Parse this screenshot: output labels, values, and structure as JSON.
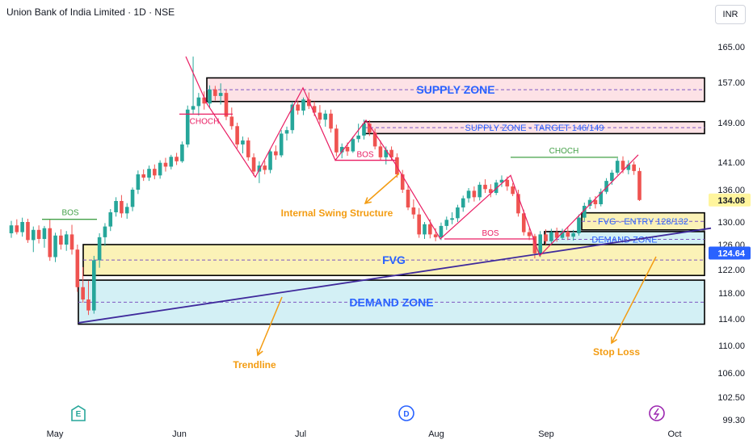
{
  "header": {
    "title": "Union Bank of India Limited · 1D · NSE",
    "currency": "INR"
  },
  "colors": {
    "up": "#26a69a",
    "down": "#ef5350",
    "supply_fill": "#fde2e6",
    "fvg_fill": "#fbf2b7",
    "demand_fill": "#d3f0f5",
    "zone_text": "#2962ff",
    "annotation": "#f39c12",
    "trendline": "#3f2a9c",
    "structure": "#e91e63",
    "choch_green": "#43a047",
    "last_price_bg": "#fff59d",
    "bid_price_bg": "#2962ff"
  },
  "chart_data": {
    "type": "candlestick",
    "title": "Union Bank of India Limited · 1D · NSE",
    "ylim": [
      99.3,
      168
    ],
    "y_ticks": [
      "165.00",
      "157.00",
      "149.00",
      "141.00",
      "136.00",
      "130.00",
      "126.00",
      "122.00",
      "118.00",
      "114.00",
      "110.00",
      "106.00",
      "102.50",
      "99.30"
    ],
    "x_ticks": [
      "May",
      "Jun",
      "Jul",
      "Aug",
      "Sep",
      "Oct"
    ],
    "price_labels": {
      "last": "134.08",
      "line": "124.64"
    },
    "candles": [
      [
        128.0,
        130.2,
        127.2,
        129.4
      ],
      [
        129.4,
        130.5,
        127.8,
        128.2
      ],
      [
        128.2,
        130.8,
        127.4,
        130.0
      ],
      [
        130.0,
        130.6,
        126.3,
        126.8
      ],
      [
        126.8,
        129.2,
        124.8,
        128.6
      ],
      [
        128.6,
        129.4,
        126.2,
        127.0
      ],
      [
        127.0,
        129.3,
        125.5,
        128.9
      ],
      [
        128.9,
        130.5,
        123.4,
        124.0
      ],
      [
        124.0,
        128.1,
        123.2,
        127.6
      ],
      [
        127.6,
        128.7,
        125.2,
        126.0
      ],
      [
        126.0,
        128.4,
        125.0,
        127.8
      ],
      [
        127.8,
        129.5,
        124.4,
        125.2
      ],
      [
        125.2,
        126.0,
        118.2,
        119.0
      ],
      [
        119.0,
        122.4,
        116.5,
        117.0
      ],
      [
        117.0,
        120.1,
        114.6,
        115.3
      ],
      [
        115.3,
        124.2,
        114.8,
        123.5
      ],
      [
        123.5,
        128.0,
        122.3,
        127.3
      ],
      [
        127.3,
        129.8,
        125.8,
        129.2
      ],
      [
        129.2,
        132.4,
        128.4,
        131.8
      ],
      [
        131.8,
        134.6,
        131.0,
        133.9
      ],
      [
        133.9,
        135.0,
        130.8,
        131.6
      ],
      [
        131.6,
        133.5,
        130.6,
        132.8
      ],
      [
        132.8,
        136.4,
        132.0,
        136.0
      ],
      [
        136.0,
        139.5,
        135.2,
        138.8
      ],
      [
        138.8,
        139.7,
        137.6,
        138.2
      ],
      [
        138.2,
        140.4,
        137.6,
        139.8
      ],
      [
        139.8,
        140.6,
        137.9,
        138.6
      ],
      [
        138.6,
        141.4,
        138.0,
        140.9
      ],
      [
        140.9,
        141.9,
        139.3,
        140.2
      ],
      [
        140.2,
        142.5,
        139.7,
        142.1
      ],
      [
        142.1,
        142.9,
        140.5,
        141.2
      ],
      [
        141.2,
        145.2,
        140.9,
        144.6
      ],
      [
        144.6,
        152.4,
        144.0,
        151.6
      ],
      [
        151.6,
        162.8,
        150.8,
        152.3
      ],
      [
        152.3,
        154.9,
        150.4,
        154.0
      ],
      [
        154.0,
        155.2,
        151.6,
        152.8
      ],
      [
        152.8,
        156.4,
        152.0,
        155.6
      ],
      [
        155.6,
        156.3,
        153.4,
        154.3
      ],
      [
        154.3,
        156.8,
        152.6,
        154.9
      ],
      [
        154.9,
        155.6,
        149.5,
        150.2
      ],
      [
        150.2,
        152.0,
        147.6,
        148.3
      ],
      [
        148.3,
        149.0,
        143.8,
        144.6
      ],
      [
        144.6,
        146.2,
        142.8,
        145.4
      ],
      [
        145.4,
        146.0,
        141.3,
        142.0
      ],
      [
        142.0,
        142.8,
        138.5,
        139.3
      ],
      [
        139.3,
        141.2,
        137.2,
        140.4
      ],
      [
        140.4,
        141.3,
        138.8,
        139.6
      ],
      [
        139.6,
        143.6,
        139.0,
        143.2
      ],
      [
        143.2,
        144.4,
        141.5,
        142.4
      ],
      [
        142.4,
        147.5,
        142.0,
        146.8
      ],
      [
        146.8,
        148.2,
        145.4,
        147.5
      ],
      [
        147.5,
        153.2,
        146.8,
        152.6
      ],
      [
        152.6,
        153.4,
        150.6,
        151.4
      ],
      [
        151.4,
        154.0,
        150.5,
        153.6
      ],
      [
        153.6,
        155.0,
        151.7,
        152.3
      ],
      [
        152.3,
        153.2,
        150.3,
        151.0
      ],
      [
        151.0,
        152.5,
        148.8,
        149.6
      ],
      [
        149.6,
        151.5,
        148.2,
        150.8
      ],
      [
        150.8,
        151.6,
        147.0,
        147.8
      ],
      [
        147.8,
        148.6,
        142.2,
        143.0
      ],
      [
        143.0,
        144.8,
        141.8,
        144.1
      ],
      [
        144.1,
        145.0,
        142.3,
        143.2
      ],
      [
        143.2,
        146.2,
        142.9,
        145.7
      ],
      [
        145.7,
        148.8,
        145.0,
        146.4
      ],
      [
        146.4,
        149.6,
        145.6,
        148.8
      ],
      [
        148.8,
        149.5,
        146.3,
        147.0
      ],
      [
        147.0,
        147.8,
        143.6,
        144.2
      ],
      [
        144.2,
        145.4,
        141.4,
        142.0
      ],
      [
        142.0,
        144.2,
        140.6,
        143.5
      ],
      [
        143.5,
        144.2,
        141.3,
        142.0
      ],
      [
        142.0,
        142.8,
        138.2,
        138.8
      ],
      [
        138.8,
        139.6,
        135.4,
        136.0
      ],
      [
        136.0,
        136.9,
        132.2,
        132.7
      ],
      [
        132.7,
        134.2,
        130.6,
        131.4
      ],
      [
        131.4,
        132.6,
        127.2,
        127.8
      ],
      [
        127.8,
        130.0,
        127.0,
        129.6
      ],
      [
        129.6,
        130.5,
        127.1,
        127.8
      ],
      [
        127.8,
        128.9,
        126.6,
        127.3
      ],
      [
        127.3,
        129.9,
        126.8,
        129.3
      ],
      [
        129.3,
        131.0,
        128.6,
        130.4
      ],
      [
        130.4,
        131.8,
        129.6,
        130.7
      ],
      [
        130.7,
        133.2,
        130.0,
        132.7
      ],
      [
        132.7,
        134.9,
        131.9,
        134.4
      ],
      [
        134.4,
        136.3,
        133.6,
        135.8
      ],
      [
        135.8,
        136.6,
        133.8,
        134.6
      ],
      [
        134.6,
        137.4,
        134.0,
        136.9
      ],
      [
        136.9,
        137.9,
        135.4,
        136.1
      ],
      [
        136.1,
        137.0,
        134.6,
        135.4
      ],
      [
        135.4,
        137.8,
        135.0,
        137.3
      ],
      [
        137.3,
        138.6,
        136.5,
        137.8
      ],
      [
        137.8,
        138.4,
        135.8,
        136.6
      ],
      [
        136.6,
        137.2,
        134.8,
        135.2
      ],
      [
        135.2,
        136.0,
        131.0,
        131.6
      ],
      [
        131.6,
        132.3,
        127.6,
        128.2
      ],
      [
        128.2,
        128.9,
        126.8,
        127.5
      ],
      [
        127.5,
        127.9,
        123.8,
        124.6
      ],
      [
        124.6,
        128.4,
        124.0,
        127.8
      ],
      [
        127.8,
        128.7,
        126.0,
        126.6
      ],
      [
        126.6,
        128.8,
        126.0,
        128.2
      ],
      [
        128.2,
        129.0,
        126.5,
        127.2
      ],
      [
        127.2,
        128.8,
        126.9,
        128.3
      ],
      [
        128.3,
        129.2,
        126.8,
        127.4
      ],
      [
        127.4,
        128.6,
        126.7,
        128.0
      ],
      [
        128.0,
        131.4,
        127.6,
        130.8
      ],
      [
        130.8,
        133.6,
        130.2,
        133.0
      ],
      [
        133.0,
        134.6,
        132.4,
        134.1
      ],
      [
        134.1,
        134.8,
        132.5,
        133.3
      ],
      [
        133.3,
        136.2,
        132.9,
        135.6
      ],
      [
        135.6,
        138.1,
        135.2,
        137.6
      ],
      [
        137.6,
        139.6,
        136.9,
        139.1
      ],
      [
        139.1,
        141.8,
        138.7,
        141.3
      ],
      [
        141.3,
        142.2,
        139.0,
        139.6
      ],
      [
        139.6,
        141.4,
        138.8,
        140.6
      ],
      [
        140.6,
        141.2,
        138.7,
        139.4
      ],
      [
        139.4,
        140.0,
        133.9,
        134.08
      ]
    ],
    "zones": [
      {
        "name": "SUPPLY ZONE",
        "from": 153.2,
        "to": 158.0,
        "kind": "supply"
      },
      {
        "name": "SUPPLY ZONE - TARGET 146/149",
        "from": 146.8,
        "to": 149.2,
        "kind": "supply"
      },
      {
        "name": "FVG - ENTRY 128/132",
        "from": 128.6,
        "to": 131.7,
        "kind": "fvg"
      },
      {
        "name": "DEMAND ZONE",
        "from": 125.6,
        "to": 128.3,
        "kind": "demand"
      },
      {
        "name": "FVG",
        "from": 121.0,
        "to": 126.0,
        "kind": "fvg"
      },
      {
        "name": "DEMAND ZONE",
        "from": 113.2,
        "to": 120.2,
        "kind": "demand"
      }
    ],
    "structure_labels": [
      "BOS",
      "CHOCH",
      "BOS",
      "BOS",
      "CHOCH"
    ],
    "annotations": [
      "Internal Swing Structure",
      "Trendline",
      "Stop Loss"
    ],
    "event_markers": [
      "E",
      "D"
    ]
  }
}
